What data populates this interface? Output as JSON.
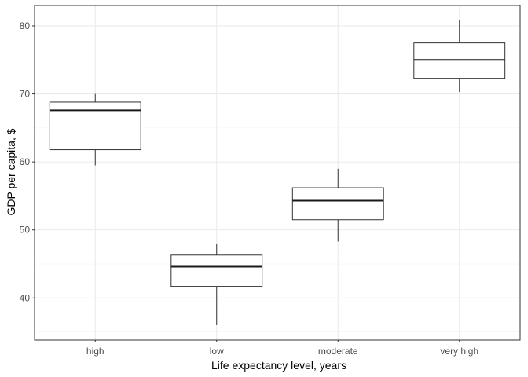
{
  "chart_data": {
    "type": "boxplot",
    "title": "",
    "xlabel": "Life expectancy level, years",
    "ylabel": "GDP per capita, $",
    "categories": [
      "high",
      "low",
      "moderate",
      "very high"
    ],
    "boxes": [
      {
        "category": "high",
        "min": 59.5,
        "q1": 61.8,
        "median": 67.6,
        "q3": 68.8,
        "max": 70.0
      },
      {
        "category": "low",
        "min": 36.0,
        "q1": 41.7,
        "median": 44.6,
        "q3": 46.3,
        "max": 47.9
      },
      {
        "category": "moderate",
        "min": 48.3,
        "q1": 51.5,
        "median": 54.3,
        "q3": 56.2,
        "max": 59.0
      },
      {
        "category": "very high",
        "min": 70.3,
        "q1": 72.3,
        "median": 75.0,
        "q3": 77.5,
        "max": 80.8
      }
    ],
    "yticks": [
      40,
      50,
      60,
      70,
      80
    ],
    "ylim": [
      33.8,
      83.0
    ],
    "grid": true,
    "legend": "none",
    "colors": {
      "box_fill": "#ffffff",
      "box_stroke": "#333333",
      "median_stroke": "#1a1a1a",
      "grid_major": "#ebebeb",
      "grid_minor": "#f5f5f5",
      "panel_border": "#333333",
      "tick_text": "#4d4d4d"
    }
  }
}
